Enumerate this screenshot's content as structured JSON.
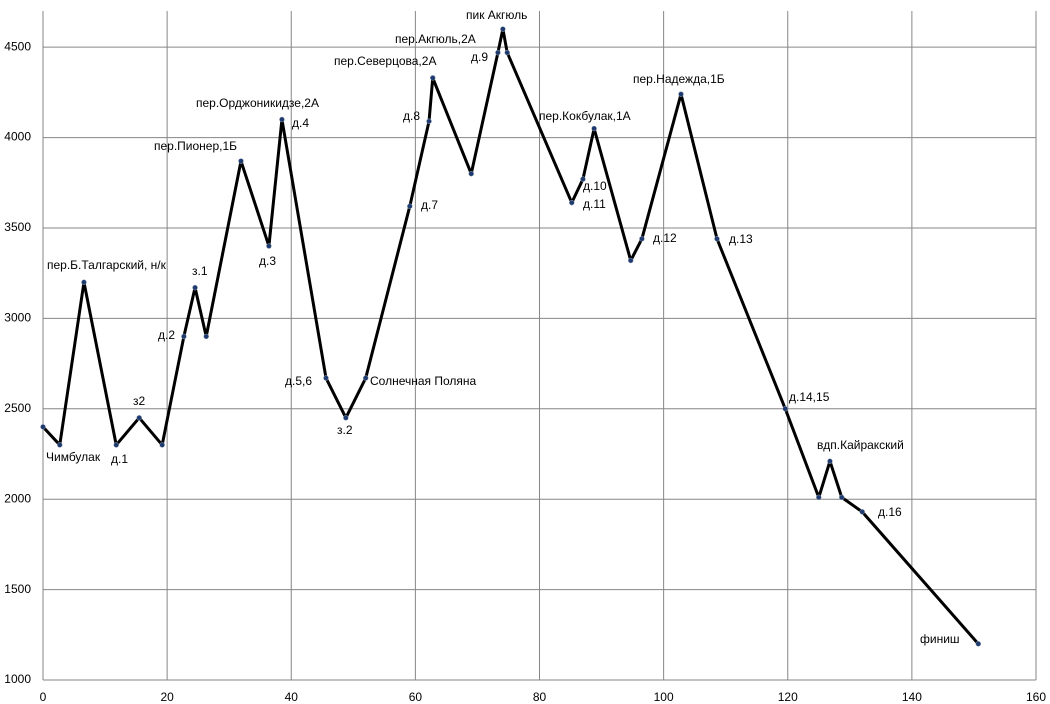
{
  "chart_data": {
    "type": "line",
    "x": [
      0,
      2.7,
      6.6,
      11.8,
      15.5,
      19.2,
      22.7,
      24.5,
      26.3,
      31.9,
      36.4,
      38.5,
      45.6,
      48.8,
      52,
      59.1,
      62.2,
      62.8,
      69,
      73.3,
      74.1,
      74.8,
      85.2,
      87,
      88.8,
      94.7,
      96.5,
      102.8,
      108.6,
      119.6,
      125,
      126.8,
      128.7,
      132,
      150.7
    ],
    "series": [
      {
        "color": "#000000",
        "values": [
          2400,
          2300,
          3200,
          2300,
          2450,
          2300,
          2900,
          3170,
          2900,
          3870,
          3400,
          4100,
          2670,
          2450,
          2670,
          3620,
          4090,
          4330,
          3800,
          4470,
          4600,
          4470,
          3640,
          3770,
          4050,
          3320,
          3440,
          4240,
          3440,
          2500,
          2010,
          2210,
          2010,
          1930,
          1200
        ]
      }
    ],
    "annotations": [
      "Чимбулак",
      "пер.Б.Талгарский, н/к",
      "д.1",
      "з2",
      "д.2",
      "з.1",
      "пер.Пионер,1Б",
      "д.3",
      "пер.Орджоникидзе,2А",
      "д.4",
      "д.5,6",
      "з.2",
      "Солнечная Поляна",
      "д.7",
      "д.8",
      "пер.Северцова,2А",
      "пер.Акгюль,2А",
      "д.9",
      "пик Акгюль",
      "пер.Кокбулак,1А",
      "д.10",
      "д.11",
      "д.12",
      "пер.Надежда,1Б",
      "д.13",
      "д.14,15",
      "вдп.Кайракский",
      "д.16",
      "финиш"
    ],
    "xlim": [
      0,
      160
    ],
    "xticks": [
      0,
      20,
      40,
      60,
      80,
      100,
      120,
      140,
      160
    ],
    "ylim": [
      1000,
      4700
    ],
    "yticks": [
      1000,
      1500,
      2000,
      2500,
      3000,
      3500,
      4000,
      4500
    ],
    "grid": true
  }
}
